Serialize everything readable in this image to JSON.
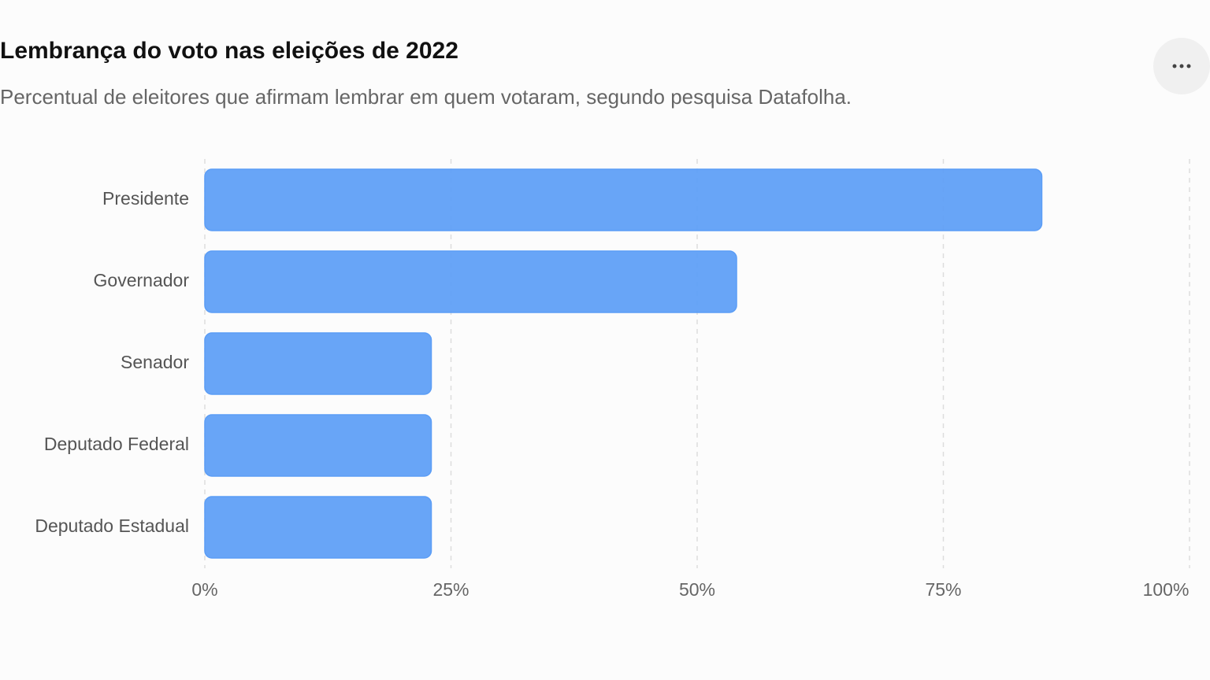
{
  "chart_data": {
    "type": "hbar",
    "title": "Lembrança do voto nas eleições de 2022",
    "subtitle": "Percentual de eleitores que afirmam lembrar em quem votaram, segundo pesquisa Datafolha.",
    "categories": [
      "Presidente",
      "Governador",
      "Senador",
      "Deputado Federal",
      "Deputado Estadual"
    ],
    "values": [
      85,
      54,
      23,
      23,
      23
    ],
    "color": "#5b9df6",
    "xlim": [
      0,
      100
    ],
    "xticks": [
      {
        "value": 0,
        "label": "0%"
      },
      {
        "value": 25,
        "label": "25%"
      },
      {
        "value": 50,
        "label": "50%"
      },
      {
        "value": 75,
        "label": "75%"
      },
      {
        "value": 100,
        "label": "100%"
      }
    ],
    "grid": true
  }
}
